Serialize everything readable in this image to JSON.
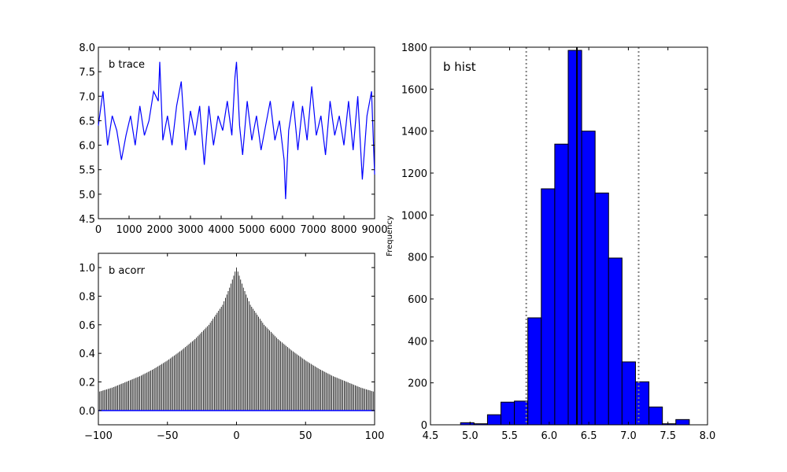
{
  "figure": {
    "colors": {
      "trace_line": "#0000ff",
      "acorr_bars": "#000000",
      "acorr_baseline": "#0000ff",
      "hist_fill": "#0000ff",
      "hist_edge": "#000000",
      "hpd_lines": "#808080",
      "mean_line": "#000000"
    }
  },
  "chart_data": [
    {
      "type": "line",
      "title": "b trace",
      "xlabel": "",
      "ylabel": "",
      "xlim": [
        0,
        9000
      ],
      "ylim": [
        4.5,
        8.0
      ],
      "xticks": [
        0,
        1000,
        2000,
        3000,
        4000,
        5000,
        6000,
        7000,
        8000,
        9000
      ],
      "yticks": [
        4.5,
        5.0,
        5.5,
        6.0,
        6.5,
        7.0,
        7.5,
        8.0
      ],
      "xtick_labels": [
        "0",
        "1000",
        "2000",
        "3000",
        "4000",
        "5000",
        "6000",
        "7000",
        "8000",
        "9000"
      ],
      "ytick_labels": [
        "4.5",
        "5.0",
        "5.5",
        "6.0",
        "6.5",
        "7.0",
        "7.5",
        "8.0"
      ],
      "grid": false,
      "series": [
        {
          "x": [
            0,
            150,
            300,
            450,
            600,
            750,
            900,
            1050,
            1200,
            1350,
            1500,
            1650,
            1800,
            1950,
            2000,
            2100,
            2250,
            2400,
            2550,
            2700,
            2850,
            3000,
            3150,
            3300,
            3450,
            3600,
            3750,
            3900,
            4050,
            4200,
            4350,
            4450,
            4500,
            4600,
            4700,
            4850,
            5000,
            5150,
            5300,
            5450,
            5600,
            5750,
            5900,
            6050,
            6100,
            6200,
            6350,
            6500,
            6650,
            6800,
            6950,
            7100,
            7250,
            7400,
            7550,
            7700,
            7850,
            8000,
            8150,
            8300,
            8450,
            8600,
            8750,
            8900,
            9000
          ],
          "y": [
            6.4,
            7.1,
            6.0,
            6.6,
            6.3,
            5.7,
            6.2,
            6.6,
            6.0,
            6.8,
            6.2,
            6.5,
            7.1,
            6.9,
            7.7,
            6.1,
            6.6,
            6.0,
            6.8,
            7.3,
            5.9,
            6.7,
            6.2,
            6.8,
            5.6,
            6.8,
            6.0,
            6.6,
            6.3,
            6.9,
            6.2,
            7.4,
            7.7,
            6.4,
            5.8,
            6.9,
            6.1,
            6.6,
            5.9,
            6.4,
            6.9,
            6.1,
            6.5,
            5.7,
            4.9,
            6.3,
            6.9,
            5.9,
            6.8,
            6.1,
            7.2,
            6.2,
            6.6,
            5.8,
            6.9,
            6.2,
            6.6,
            6.0,
            6.9,
            5.9,
            7.0,
            5.3,
            6.6,
            7.1,
            5.4
          ],
          "color": "#0000ff"
        }
      ]
    },
    {
      "type": "bar",
      "title": "b acorr",
      "xlabel": "",
      "ylabel": "",
      "xlim": [
        -100,
        100
      ],
      "ylim": [
        -0.1,
        1.1
      ],
      "xticks": [
        -100,
        -50,
        0,
        50,
        100
      ],
      "yticks": [
        0.0,
        0.2,
        0.4,
        0.6,
        0.8,
        1.0
      ],
      "xtick_labels": [
        "−100",
        "−50",
        "0",
        "50",
        "100"
      ],
      "ytick_labels": [
        "0.0",
        "0.2",
        "0.4",
        "0.6",
        "0.8",
        "1.0"
      ],
      "grid": false,
      "lag_range": [
        -100,
        100
      ],
      "acf_profile": {
        "lags": [
          0,
          5,
          10,
          20,
          30,
          40,
          50,
          60,
          70,
          80,
          90,
          100
        ],
        "values": [
          1.0,
          0.86,
          0.74,
          0.6,
          0.5,
          0.42,
          0.35,
          0.29,
          0.24,
          0.2,
          0.16,
          0.13
        ]
      },
      "bar_color": "#000000",
      "baseline_color": "#0000ff"
    },
    {
      "type": "bar",
      "title": "b hist",
      "xlabel": "",
      "ylabel": "Frequency",
      "xlim": [
        4.5,
        8.0
      ],
      "ylim": [
        0,
        1800
      ],
      "xticks": [
        4.5,
        5.0,
        5.5,
        6.0,
        6.5,
        7.0,
        7.5,
        8.0
      ],
      "yticks": [
        0,
        200,
        400,
        600,
        800,
        1000,
        1200,
        1400,
        1600,
        1800
      ],
      "xtick_labels": [
        "4.5",
        "5.0",
        "5.5",
        "6.0",
        "6.5",
        "7.0",
        "7.5",
        "8.0"
      ],
      "ytick_labels": [
        "0",
        "200",
        "400",
        "600",
        "800",
        "1000",
        "1200",
        "1400",
        "1600",
        "1800"
      ],
      "grid": false,
      "bin_edges": [
        4.88,
        5.05,
        5.22,
        5.39,
        5.56,
        5.73,
        5.9,
        6.07,
        6.24,
        6.41,
        6.58,
        6.75,
        6.92,
        7.09,
        7.26,
        7.43,
        7.6,
        7.77
      ],
      "counts": [
        10,
        5,
        48,
        108,
        113,
        510,
        1125,
        1338,
        1785,
        1400,
        1105,
        795,
        300,
        205,
        85,
        5,
        25
      ],
      "hpd_interval": [
        5.71,
        7.13
      ],
      "mean": 6.35
    }
  ]
}
